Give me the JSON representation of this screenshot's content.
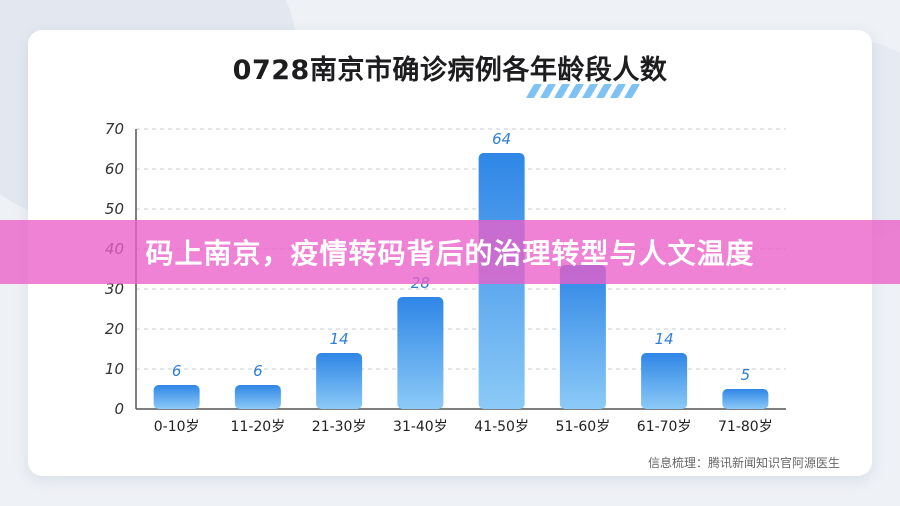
{
  "chart_data": {
    "type": "bar",
    "title": "0728南京市确诊病例各年龄段人数",
    "categories": [
      "0-10岁",
      "11-20岁",
      "21-30岁",
      "31-40岁",
      "41-50岁",
      "51-60岁",
      "61-70岁",
      "71-80岁"
    ],
    "values": [
      6,
      6,
      14,
      28,
      64,
      36,
      14,
      5
    ],
    "value_labels": [
      "6",
      "6",
      "14",
      "28",
      "64",
      "",
      "14",
      "5"
    ],
    "yticks": [
      "0",
      "10",
      "20",
      "30",
      "40",
      "50",
      "60",
      "70"
    ],
    "ylim": [
      0,
      70
    ],
    "grid": true,
    "bar_color": "#2f86e6",
    "bar_color_light": "#8ccaf7"
  },
  "source": "信息梳理：腾讯新闻知识官阿源医生",
  "banner": "码上南京，疫情转码背后的治理转型与人文温度",
  "colors": {
    "accent": "#2f86e6",
    "banner": "#eb5fc8"
  }
}
